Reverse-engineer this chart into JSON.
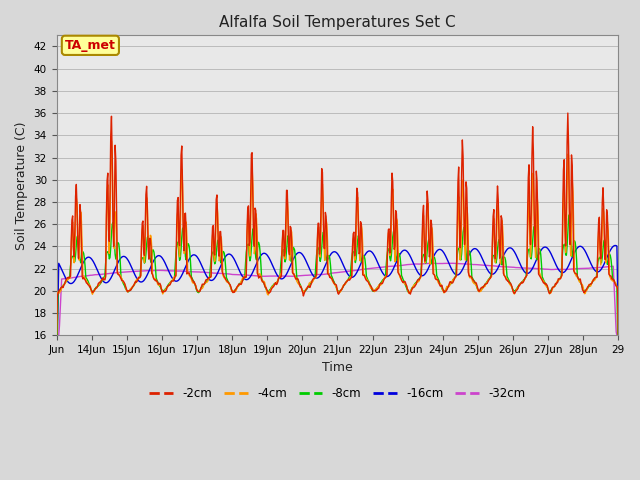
{
  "title": "Alfalfa Soil Temperatures Set C",
  "xlabel": "Time",
  "ylabel": "Soil Temperature (C)",
  "ylim": [
    16,
    43
  ],
  "yticks": [
    16,
    18,
    20,
    22,
    24,
    26,
    28,
    30,
    32,
    34,
    36,
    38,
    40,
    42
  ],
  "fig_bg_color": "#d8d8d8",
  "plot_bg_color": "#e8e8e8",
  "colors": {
    "-2cm": "#dd2200",
    "-4cm": "#ff9900",
    "-8cm": "#00cc00",
    "-16cm": "#0000dd",
    "-32cm": "#cc44cc"
  },
  "legend_labels": [
    "-2cm",
    "-4cm",
    "-8cm",
    "-16cm",
    "-32cm"
  ],
  "ta_met_label": "TA_met",
  "ta_met_color": "#cc0000",
  "ta_met_bg": "#ffff99",
  "ta_met_border": "#aa8800",
  "xtick_labels": [
    "Jun",
    "14Jun",
    "15Jun",
    "16Jun",
    "17Jun",
    "18Jun",
    "19Jun",
    "20Jun",
    "21Jun",
    "22Jun",
    "23Jun",
    "24Jun",
    "25Jun",
    "26Jun",
    "27Jun",
    "28Jun",
    "29"
  ],
  "days": 16,
  "grid_color": "#bbbbbb",
  "linewidth": 1.0
}
